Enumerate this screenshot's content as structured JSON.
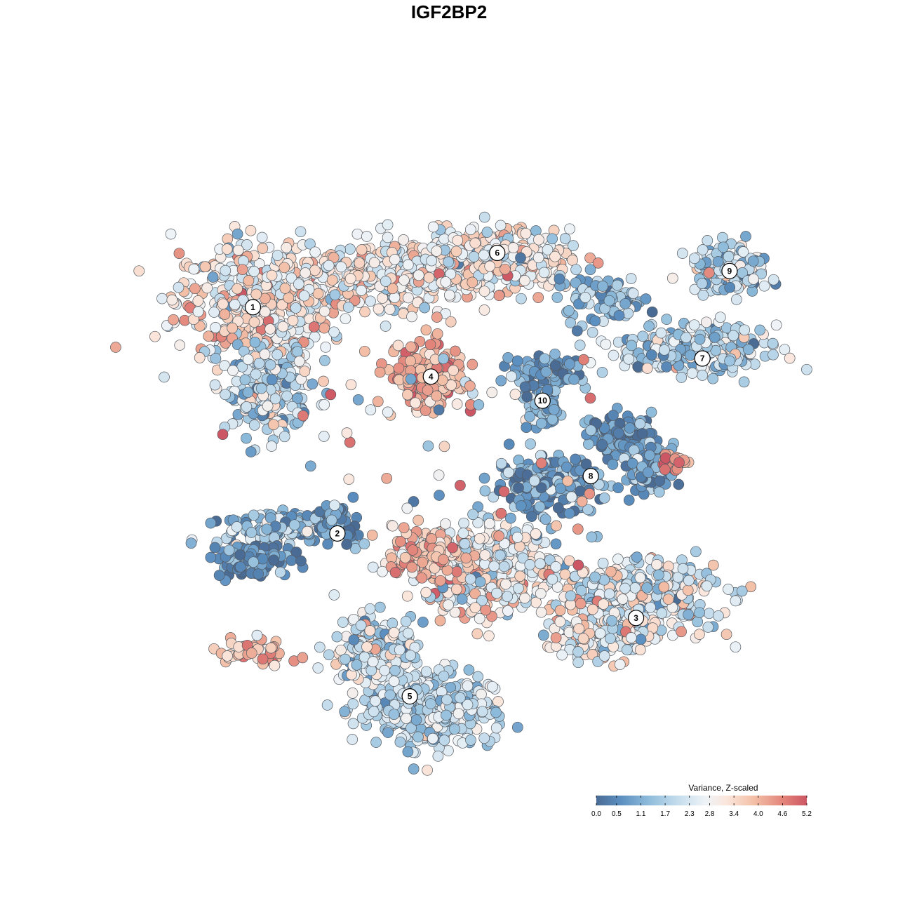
{
  "chart_data": {
    "type": "scatter",
    "title": "IGF2BP2",
    "xlabel": "",
    "ylabel": "",
    "axes_visible": false,
    "grid": false,
    "legend": {
      "title": "Variance, Z-scaled",
      "placement": "bottom-right",
      "ticks": [
        "0.0",
        "0.5",
        "1.1",
        "1.7",
        "2.3",
        "2.8",
        "3.4",
        "4.0",
        "4.6",
        "5.2"
      ],
      "range": [
        0.0,
        5.2
      ]
    },
    "color_scale": {
      "stops": [
        {
          "v": 0.0,
          "color": "#4a6b94"
        },
        {
          "v": 0.6,
          "color": "#5b8fc0"
        },
        {
          "v": 1.3,
          "color": "#8fbcdb"
        },
        {
          "v": 2.0,
          "color": "#c4dcec"
        },
        {
          "v": 2.7,
          "color": "#eef3f7"
        },
        {
          "v": 3.2,
          "color": "#fbe7dd"
        },
        {
          "v": 3.9,
          "color": "#f3bfa6"
        },
        {
          "v": 4.6,
          "color": "#e3857a"
        },
        {
          "v": 5.2,
          "color": "#cd5664"
        }
      ]
    },
    "clusters": [
      {
        "label": "1",
        "x": -6.5,
        "y": 4.7,
        "mean": 3.0
      },
      {
        "label": "2",
        "x": -3.7,
        "y": -2.8,
        "mean": 1.2
      },
      {
        "label": "3",
        "x": 6.2,
        "y": -5.6,
        "mean": 2.6
      },
      {
        "label": "4",
        "x": -0.6,
        "y": 2.4,
        "mean": 4.2
      },
      {
        "label": "5",
        "x": -1.3,
        "y": -8.2,
        "mean": 2.0
      },
      {
        "label": "6",
        "x": 1.6,
        "y": 6.5,
        "mean": 2.9
      },
      {
        "label": "7",
        "x": 8.4,
        "y": 3.0,
        "mean": 1.9
      },
      {
        "label": "8",
        "x": 4.7,
        "y": -0.9,
        "mean": 0.8
      },
      {
        "label": "9",
        "x": 9.3,
        "y": 5.9,
        "mean": 1.8
      },
      {
        "label": "10",
        "x": 3.1,
        "y": 1.6,
        "mean": 0.9
      }
    ]
  }
}
